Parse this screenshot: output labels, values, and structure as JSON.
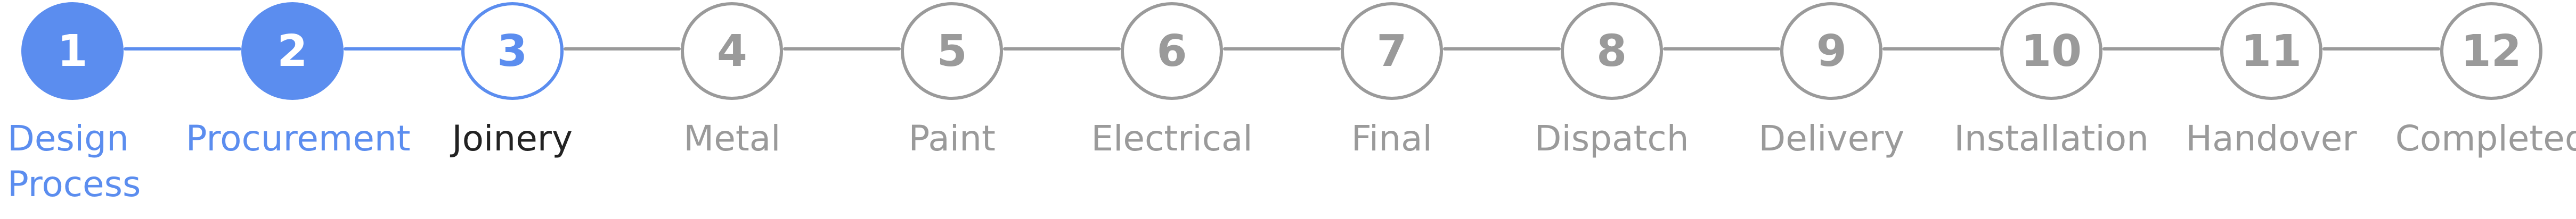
{
  "colors": {
    "completed": "#5b8def",
    "active_border": "#5b8def",
    "active_label": "#222222",
    "upcoming": "#9a9a9a",
    "connector_done": "#5b8def",
    "connector_pending": "#9a9a9a"
  },
  "stepper": {
    "steps": [
      {
        "number": "1",
        "label": "Design Process",
        "status": "completed"
      },
      {
        "number": "2",
        "label": "Procurement",
        "status": "completed"
      },
      {
        "number": "3",
        "label": "Joinery",
        "status": "active"
      },
      {
        "number": "4",
        "label": "Metal",
        "status": "upcoming"
      },
      {
        "number": "5",
        "label": "Paint",
        "status": "upcoming"
      },
      {
        "number": "6",
        "label": "Electrical",
        "status": "upcoming"
      },
      {
        "number": "7",
        "label": "Final",
        "status": "upcoming"
      },
      {
        "number": "8",
        "label": "Dispatch",
        "status": "upcoming"
      },
      {
        "number": "9",
        "label": "Delivery",
        "status": "upcoming"
      },
      {
        "number": "10",
        "label": "Installation",
        "status": "upcoming"
      },
      {
        "number": "11",
        "label": "Handover",
        "status": "upcoming"
      },
      {
        "number": "12",
        "label": "Completed",
        "status": "upcoming"
      }
    ]
  }
}
